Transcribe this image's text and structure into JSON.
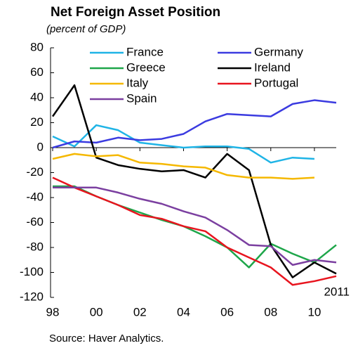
{
  "chart_data": {
    "type": "line",
    "title": "Net Foreign Asset Position",
    "subtitle": "(percent of GDP)",
    "source": "Source: Haver Analytics.",
    "annotation": "2011",
    "x": [
      1998,
      1999,
      2000,
      2001,
      2002,
      2003,
      2004,
      2005,
      2006,
      2007,
      2008,
      2009,
      2010,
      2011
    ],
    "xlim": [
      1998,
      2011
    ],
    "xticks": [
      {
        "value": 1998,
        "label": "98"
      },
      {
        "value": 2000,
        "label": "00"
      },
      {
        "value": 2002,
        "label": "02"
      },
      {
        "value": 2004,
        "label": "04"
      },
      {
        "value": 2006,
        "label": "06"
      },
      {
        "value": 2008,
        "label": "08"
      },
      {
        "value": 2010,
        "label": "10"
      }
    ],
    "ylim": [
      -120,
      80
    ],
    "yticks": [
      -120,
      -100,
      -80,
      -60,
      -40,
      -20,
      0,
      20,
      40,
      60,
      80
    ],
    "grid": false,
    "series": [
      {
        "name": "France",
        "color": "#1fb4e6",
        "values": [
          9,
          1,
          18,
          14,
          4,
          2,
          0,
          1,
          1,
          -1,
          -12,
          -8,
          -9,
          null
        ]
      },
      {
        "name": "Germany",
        "color": "#3b3be0",
        "values": [
          0,
          5,
          4,
          8,
          6,
          7,
          11,
          21,
          27,
          26,
          25,
          35,
          38,
          36
        ]
      },
      {
        "name": "Greece",
        "color": "#1ea64a",
        "values": [
          -31,
          -31,
          -39,
          -46,
          -52,
          -58,
          -63,
          -71,
          -80,
          -96,
          -77,
          -85,
          -92,
          -78
        ]
      },
      {
        "name": "Ireland",
        "color": "#000000",
        "values": [
          25,
          50,
          -8,
          -14,
          -17,
          -19,
          -18,
          -24,
          -5,
          -18,
          -78,
          -104,
          -92,
          -101
        ]
      },
      {
        "name": "Italy",
        "color": "#f5b800",
        "values": [
          -9,
          -5,
          -7,
          -6,
          -12,
          -13,
          -15,
          -16,
          -22,
          -24,
          -24,
          -25,
          -24,
          null
        ]
      },
      {
        "name": "Portugal",
        "color": "#e8141e",
        "values": [
          -24,
          -32,
          -39,
          -46,
          -54,
          -57,
          -63,
          -67,
          -80,
          -88,
          -96,
          -110,
          -107,
          -103
        ]
      },
      {
        "name": "Spain",
        "color": "#7b3fa0",
        "values": [
          -32,
          -32,
          -32,
          -36,
          -41,
          -45,
          -51,
          -56,
          -66,
          -78,
          -79,
          -94,
          -90,
          -92
        ]
      }
    ]
  }
}
